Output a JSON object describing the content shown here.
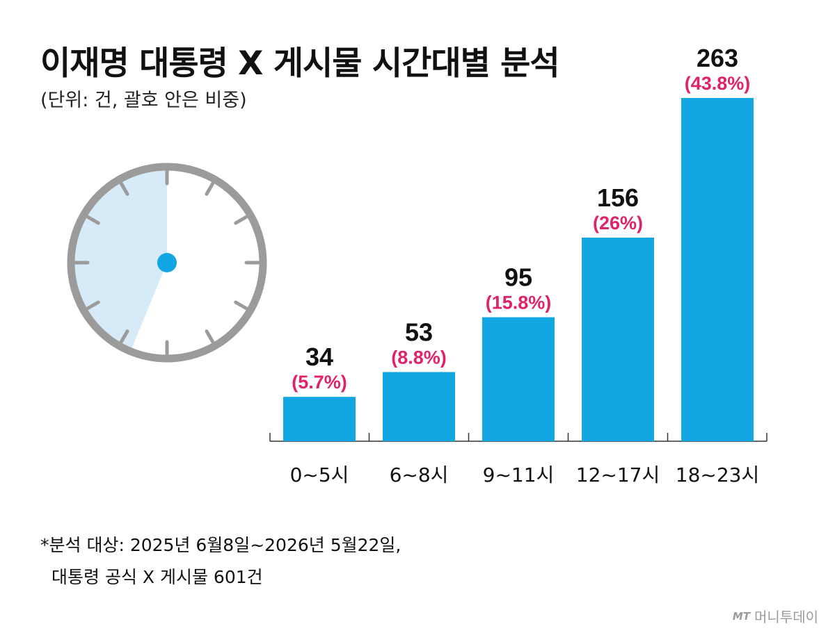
{
  "title": "이재명 대통령 X 게시물 시간대별 분석",
  "subtitle": "(단위: 건, 괄호 안은 비중)",
  "chart_data": {
    "type": "bar",
    "categories": [
      "0~5시",
      "6~8시",
      "9~11시",
      "12~17시",
      "18~23시"
    ],
    "values": [
      34,
      53,
      95,
      156,
      263
    ],
    "percent_labels": [
      "(5.7%)",
      "(8.8%)",
      "(15.8%)",
      "(26%)",
      "(43.8%)"
    ],
    "ylim": [
      0,
      263
    ],
    "bar_color": "#12a6e2",
    "value_label_color": "#111111",
    "percent_label_color": "#e0226b",
    "grid": false
  },
  "clock": {
    "shaded_fraction": 0.438,
    "face_color": "#ffffff",
    "shade_color": "#d6eaf8",
    "rim_color": "#9b9b9b",
    "center_color": "#12a6e2"
  },
  "footnote": {
    "line1": "*분석 대상: 2025년 6월8일~2026년 5월22일,",
    "line2": "대통령 공식 X 게시물 601건"
  },
  "logo": {
    "mark": "MT",
    "text": "머니투데이"
  }
}
